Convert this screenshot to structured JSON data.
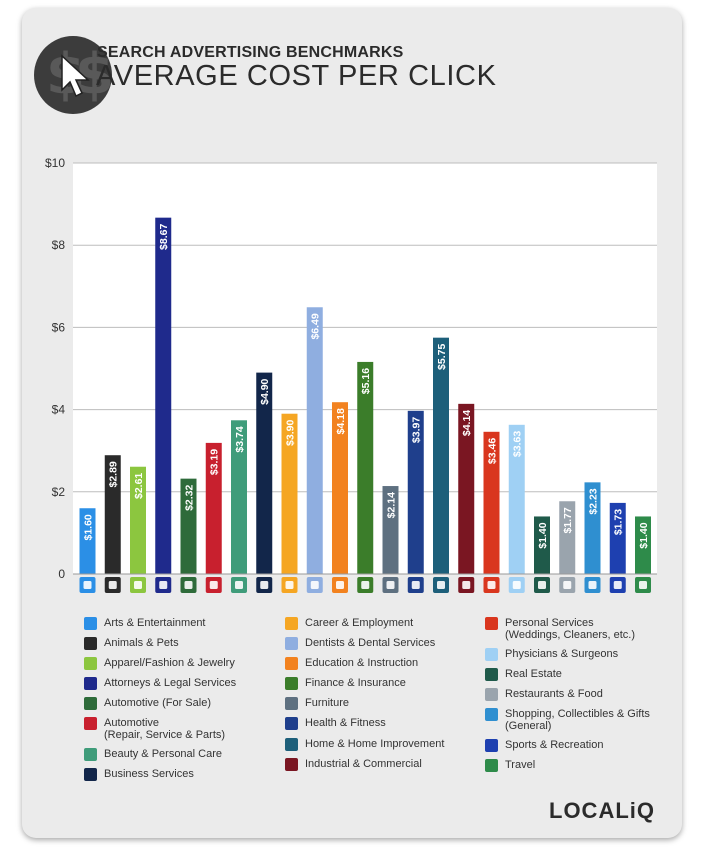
{
  "header": {
    "subtitle": "SEARCH ADVERTISING BENCHMARKS",
    "title": "AVERAGE COST PER CLICK"
  },
  "brand": "LOCALiQ",
  "chart_data": {
    "type": "bar",
    "ylim": [
      0,
      10
    ],
    "yticks": [
      "0",
      "$2",
      "$4",
      "$6",
      "$8",
      "$10"
    ],
    "grid": true,
    "categories": [
      "Arts & Entertainment",
      "Animals & Pets",
      "Apparel/Fashion & Jewelry",
      "Attorneys & Legal Services",
      "Automotive (For Sale)",
      "Automotive\n(Repair, Service & Parts)",
      "Beauty & Personal Care",
      "Business Services",
      "Career & Employment",
      "Dentists & Dental Services",
      "Education & Instruction",
      "Finance & Insurance",
      "Furniture",
      "Health & Fitness",
      "Home & Home Improvement",
      "Industrial & Commercial",
      "Personal Services\n(Weddings, Cleaners, etc.)",
      "Physicians & Surgeons",
      "Real Estate",
      "Restaurants & Food",
      "Shopping, Collectibles & Gifts\n(General)",
      "Sports & Recreation",
      "Travel"
    ],
    "values": [
      1.6,
      2.89,
      2.61,
      8.67,
      2.32,
      3.19,
      3.74,
      4.9,
      3.9,
      6.49,
      4.18,
      5.16,
      2.14,
      3.97,
      5.75,
      4.14,
      3.46,
      3.63,
      1.4,
      1.77,
      2.23,
      1.73,
      1.4
    ],
    "labels": [
      "$1.60",
      "$2.89",
      "$2.61",
      "$8.67",
      "$2.32",
      "$3.19",
      "$3.74",
      "$4.90",
      "$3.90",
      "$6.49",
      "$4.18",
      "$5.16",
      "$2.14",
      "$3.97",
      "$5.75",
      "$4.14",
      "$3.46",
      "$3.63",
      "$1.40",
      "$1.77",
      "$2.23",
      "$1.73",
      "$1.40"
    ],
    "colors": [
      "#2b8fe6",
      "#2a2a2a",
      "#8cc63f",
      "#1f2a8c",
      "#2e6b3a",
      "#c8202e",
      "#3f9c7a",
      "#12264a",
      "#f5a623",
      "#8faee0",
      "#f2821f",
      "#3b7d2a",
      "#5e7080",
      "#1f3f8c",
      "#1d5f7a",
      "#7a1622",
      "#d9361e",
      "#9fd0f4",
      "#1f5a4a",
      "#9aa4ad",
      "#2f8fd0",
      "#1e40b0",
      "#2e8b4a"
    ],
    "icons": [
      "picture-icon",
      "paw-icon",
      "shirt-icon",
      "gavel-icon",
      "car-tag-icon",
      "car-icon",
      "brush-icon",
      "briefcase-icon",
      "toolbox-icon",
      "tooth-icon",
      "graduation-cap-icon",
      "money-icon",
      "sofa-icon",
      "apple-icon",
      "house-icon",
      "factory-icon",
      "person-icon",
      "cross-icon",
      "building-icon",
      "fork-knife-icon",
      "gift-icon",
      "ball-icon",
      "plane-icon"
    ]
  }
}
